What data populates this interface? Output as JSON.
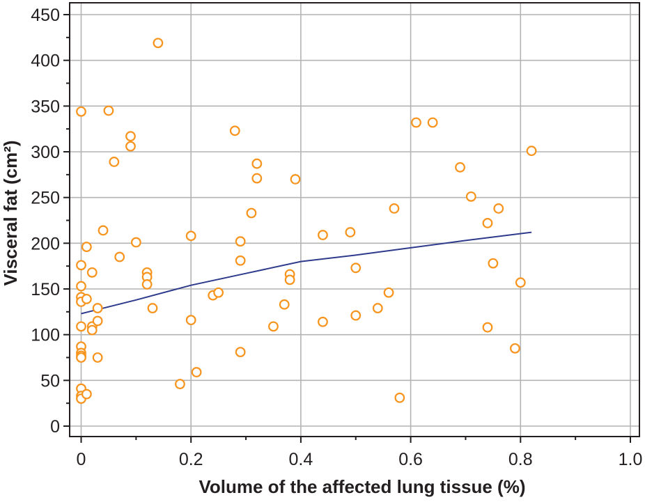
{
  "chart_data": {
    "type": "scatter",
    "title": "",
    "xlabel": "Volume of the affected lung tissue (%)",
    "ylabel": "Visceral fat (cm²)",
    "xlim": [
      -0.02,
      1.02
    ],
    "ylim": [
      -12,
      455
    ],
    "xticks": [
      0,
      0.2,
      0.4,
      0.6,
      0.8,
      1.0
    ],
    "xtick_labels": [
      "0",
      "0.2",
      "0.4",
      "0.6",
      "0.8",
      "1.0"
    ],
    "yticks": [
      0,
      50,
      100,
      150,
      200,
      250,
      300,
      350,
      400,
      450
    ],
    "ytick_labels": [
      "0",
      "50",
      "100",
      "150",
      "200",
      "250",
      "300",
      "350",
      "400",
      "450"
    ],
    "grid": true,
    "legend": "none",
    "marker_color": "#f7941d",
    "line_color": "#2e3a8c",
    "points": [
      {
        "x": 0.0,
        "y": 344
      },
      {
        "x": 0.0,
        "y": 176
      },
      {
        "x": 0.0,
        "y": 153
      },
      {
        "x": 0.0,
        "y": 141
      },
      {
        "x": 0.0,
        "y": 136
      },
      {
        "x": 0.0,
        "y": 109
      },
      {
        "x": 0.0,
        "y": 87
      },
      {
        "x": 0.0,
        "y": 80
      },
      {
        "x": 0.0,
        "y": 77
      },
      {
        "x": 0.0,
        "y": 75
      },
      {
        "x": 0.0,
        "y": 41
      },
      {
        "x": 0.0,
        "y": 33
      },
      {
        "x": 0.0,
        "y": 30
      },
      {
        "x": 0.01,
        "y": 35
      },
      {
        "x": 0.01,
        "y": 196
      },
      {
        "x": 0.01,
        "y": 139
      },
      {
        "x": 0.02,
        "y": 168
      },
      {
        "x": 0.02,
        "y": 109
      },
      {
        "x": 0.02,
        "y": 105
      },
      {
        "x": 0.03,
        "y": 129
      },
      {
        "x": 0.03,
        "y": 115
      },
      {
        "x": 0.03,
        "y": 75
      },
      {
        "x": 0.04,
        "y": 214
      },
      {
        "x": 0.05,
        "y": 345
      },
      {
        "x": 0.06,
        "y": 289
      },
      {
        "x": 0.07,
        "y": 185
      },
      {
        "x": 0.09,
        "y": 317
      },
      {
        "x": 0.09,
        "y": 306
      },
      {
        "x": 0.1,
        "y": 201
      },
      {
        "x": 0.12,
        "y": 168
      },
      {
        "x": 0.12,
        "y": 163
      },
      {
        "x": 0.12,
        "y": 155
      },
      {
        "x": 0.13,
        "y": 129
      },
      {
        "x": 0.14,
        "y": 419
      },
      {
        "x": 0.18,
        "y": 46
      },
      {
        "x": 0.2,
        "y": 208
      },
      {
        "x": 0.2,
        "y": 116
      },
      {
        "x": 0.21,
        "y": 59
      },
      {
        "x": 0.24,
        "y": 143
      },
      {
        "x": 0.25,
        "y": 146
      },
      {
        "x": 0.28,
        "y": 323
      },
      {
        "x": 0.29,
        "y": 202
      },
      {
        "x": 0.29,
        "y": 181
      },
      {
        "x": 0.29,
        "y": 81
      },
      {
        "x": 0.31,
        "y": 233
      },
      {
        "x": 0.32,
        "y": 287
      },
      {
        "x": 0.32,
        "y": 271
      },
      {
        "x": 0.35,
        "y": 109
      },
      {
        "x": 0.37,
        "y": 133
      },
      {
        "x": 0.38,
        "y": 166
      },
      {
        "x": 0.38,
        "y": 160
      },
      {
        "x": 0.39,
        "y": 270
      },
      {
        "x": 0.44,
        "y": 209
      },
      {
        "x": 0.44,
        "y": 114
      },
      {
        "x": 0.49,
        "y": 212
      },
      {
        "x": 0.5,
        "y": 173
      },
      {
        "x": 0.5,
        "y": 121
      },
      {
        "x": 0.54,
        "y": 129
      },
      {
        "x": 0.56,
        "y": 146
      },
      {
        "x": 0.57,
        "y": 238
      },
      {
        "x": 0.58,
        "y": 31
      },
      {
        "x": 0.61,
        "y": 332
      },
      {
        "x": 0.64,
        "y": 332
      },
      {
        "x": 0.69,
        "y": 283
      },
      {
        "x": 0.71,
        "y": 251
      },
      {
        "x": 0.74,
        "y": 222
      },
      {
        "x": 0.74,
        "y": 108
      },
      {
        "x": 0.75,
        "y": 178
      },
      {
        "x": 0.76,
        "y": 238
      },
      {
        "x": 0.79,
        "y": 85
      },
      {
        "x": 0.8,
        "y": 157
      },
      {
        "x": 0.82,
        "y": 301
      }
    ],
    "trend_line": [
      {
        "x": 0.0,
        "y": 123
      },
      {
        "x": 0.1,
        "y": 138
      },
      {
        "x": 0.2,
        "y": 154
      },
      {
        "x": 0.3,
        "y": 167
      },
      {
        "x": 0.4,
        "y": 180
      },
      {
        "x": 0.5,
        "y": 187
      },
      {
        "x": 0.6,
        "y": 195
      },
      {
        "x": 0.7,
        "y": 203
      },
      {
        "x": 0.82,
        "y": 212
      }
    ]
  }
}
